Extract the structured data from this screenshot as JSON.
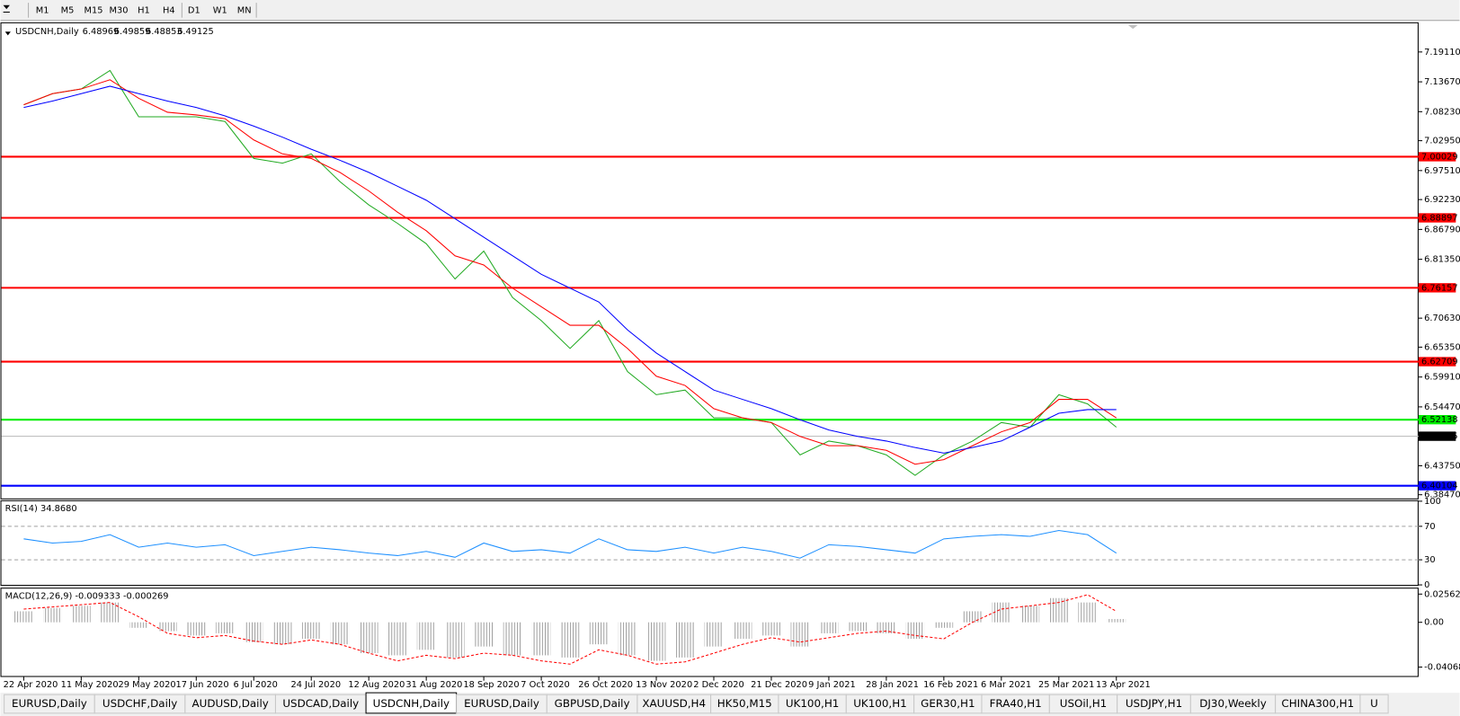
{
  "toolbar": {
    "buttons": [
      "M1",
      "M5",
      "M15",
      "M30",
      "H1",
      "H4",
      "D1",
      "W1",
      "MN"
    ]
  },
  "tabs": {
    "active": 4,
    "items": [
      "EURUSD,Daily",
      "USDCHF,Daily",
      "AUDUSD,Daily",
      "USDCAD,Daily",
      "USDCNH,Daily",
      "EURUSD,Daily",
      "GBPUSD,Daily",
      "XAUUSD,H4",
      "HK50,M15",
      "UK100,H1",
      "UK100,H1",
      "GER30,H1",
      "FRA40,H1",
      "USOil,H1",
      "USDJPY,H1",
      "DJ30,Weekly",
      "CHINA300,H1",
      "U"
    ]
  },
  "chart_data": [
    {
      "type": "line",
      "title": "USDCNH,Daily",
      "ohlc": [
        6.48969,
        6.49859,
        6.48853,
        6.49125
      ],
      "current_color": "#c0c0c0",
      "categories": [
        "22 Apr 2020",
        null,
        "11 May 2020",
        null,
        "29 May 2020",
        null,
        "17 Jun 2020",
        null,
        "6 Jul 2020",
        null,
        "24 Jul 2020",
        null,
        "12 Aug 2020",
        null,
        "31 Aug 2020",
        null,
        "18 Sep 2020",
        null,
        "7 Oct 2020",
        null,
        "26 Oct 2020",
        null,
        "13 Nov 2020",
        null,
        "2 Dec 2020",
        null,
        "21 Dec 2020",
        null,
        "9 Jan 2021",
        null,
        "28 Jan 2021",
        null,
        "16 Feb 2021",
        null,
        "6 Mar 2021",
        null,
        "25 Mar 2021",
        null,
        "13 Apr 2021"
      ],
      "series": [
        {
          "color": "#22aa22",
          "values": [
            7.0949,
            7.1152,
            7.1236,
            7.1574,
            7.073,
            7.073,
            7.073,
            7.0646,
            6.9971,
            6.9886,
            7.0055,
            6.9549,
            6.9127,
            6.879,
            6.8418,
            6.7777,
            6.8284,
            6.744,
            6.7018,
            6.6512,
            6.7018,
            6.609,
            6.5668,
            6.5753,
            6.5247,
            6.5247,
            6.5162,
            6.4572,
            6.4825,
            6.474,
            6.4572,
            6.42,
            6.4572,
            6.4825,
            6.5162,
            6.5078,
            6.5668,
            6.55,
            6.5078
          ]
        },
        {
          "color": "#ff0000",
          "values": [
            7.0949,
            7.1152,
            7.1236,
            7.1405,
            7.1067,
            7.0814,
            7.0764,
            7.0696,
            7.0308,
            7.0055,
            6.9971,
            6.9718,
            6.938,
            6.8992,
            6.8655,
            6.8199,
            6.803,
            6.7609,
            6.7271,
            6.6934,
            6.6934,
            6.6512,
            6.6006,
            6.5837,
            6.5415,
            6.5247,
            6.5162,
            6.4909,
            6.474,
            6.474,
            6.4656,
            6.4403,
            6.4487,
            6.474,
            6.4993,
            6.5162,
            6.5584,
            6.5584,
            6.5247
          ]
        },
        {
          "color": "#0000ff",
          "values": [
            7.0899,
            7.1017,
            7.1152,
            7.1287,
            7.1152,
            7.1017,
            7.0899,
            7.0747,
            7.0561,
            7.0359,
            7.0139,
            6.9937,
            6.9718,
            6.9465,
            6.9211,
            6.8874,
            6.8537,
            6.8199,
            6.7862,
            6.7609,
            6.7356,
            6.6849,
            6.6428,
            6.609,
            6.5753,
            6.5584,
            6.5415,
            6.5213,
            6.5027,
            6.4909,
            6.4825,
            6.4707,
            6.4605,
            6.4707,
            6.4825,
            6.5078,
            6.5331,
            6.5398,
            6.5398
          ]
        }
      ],
      "levels": [
        {
          "value": 7.00029,
          "color": "#ff0000"
        },
        {
          "value": 6.88897,
          "color": "#ff0000"
        },
        {
          "value": 6.76157,
          "color": "#ff0000"
        },
        {
          "value": 6.62709,
          "color": "#ff0000"
        },
        {
          "value": 6.52138,
          "color": "#00ee00"
        },
        {
          "value": 6.40104,
          "color": "#0000ff"
        }
      ],
      "ylim": [
        6.378,
        7.2434
      ],
      "yticks": [
        {
          "value": 7.1911,
          "label": "7.19110"
        },
        {
          "value": 7.1367,
          "label": "7.13670"
        },
        {
          "value": 7.0823,
          "label": "7.08230"
        },
        {
          "value": 7.0295,
          "label": "7.02950"
        },
        {
          "value": 6.9751,
          "label": "6.97510"
        },
        {
          "value": 6.9223,
          "label": "6.92230"
        },
        {
          "value": 6.8679,
          "label": "6.86790"
        },
        {
          "value": 6.8135,
          "label": "6.81350"
        },
        {
          "value": 6.7063,
          "label": "6.70630"
        },
        {
          "value": 6.6535,
          "label": "6.65350"
        },
        {
          "value": 6.5991,
          "label": "6.59910"
        },
        {
          "value": 6.5447,
          "label": "6.54470"
        },
        {
          "value": 6.4375,
          "label": "6.43750"
        },
        {
          "value": 6.3847,
          "label": "6.38470"
        }
      ]
    },
    {
      "type": "line",
      "title": "RSI(14) 34.8680",
      "levels": [
        70,
        30
      ],
      "series": [
        {
          "color": "#1e90ff",
          "values": [
            55,
            50,
            52,
            60,
            45,
            50,
            45,
            48,
            35,
            40,
            45,
            42,
            38,
            35,
            40,
            33,
            50,
            40,
            42,
            38,
            55,
            42,
            40,
            45,
            38,
            45,
            40,
            32,
            48,
            46,
            42,
            38,
            55,
            58,
            60,
            58,
            65,
            60,
            38
          ]
        }
      ],
      "ylim": [
        0,
        100
      ],
      "yticks": [
        0,
        30,
        70,
        100
      ]
    },
    {
      "type": "macd",
      "title": "MACD(12,26,9) -0.009333 -0.000269",
      "histogram": {
        "color": "#a0a0a0",
        "values": [
          0.01,
          0.013,
          0.015,
          0.018,
          -0.005,
          -0.008,
          -0.012,
          -0.01,
          -0.018,
          -0.02,
          -0.015,
          -0.02,
          -0.028,
          -0.03,
          -0.025,
          -0.032,
          -0.022,
          -0.03,
          -0.03,
          -0.032,
          -0.02,
          -0.03,
          -0.035,
          -0.032,
          -0.022,
          -0.015,
          -0.012,
          -0.022,
          -0.01,
          -0.008,
          -0.01,
          -0.015,
          -0.005,
          0.01,
          0.018,
          0.015,
          0.022,
          0.018,
          0.003
        ]
      },
      "signal": {
        "color": "#ff0000",
        "values": [
          0.012,
          0.014,
          0.016,
          0.018,
          0.005,
          -0.01,
          -0.014,
          -0.012,
          -0.017,
          -0.02,
          -0.016,
          -0.02,
          -0.028,
          -0.035,
          -0.03,
          -0.033,
          -0.028,
          -0.03,
          -0.035,
          -0.038,
          -0.025,
          -0.03,
          -0.038,
          -0.036,
          -0.028,
          -0.02,
          -0.014,
          -0.018,
          -0.014,
          -0.01,
          -0.008,
          -0.012,
          -0.015,
          0.0,
          0.012,
          0.015,
          0.018,
          0.025,
          0.01
        ]
      },
      "ylim": [
        -0.0488,
        0.0306
      ],
      "yticks": [
        0.025623,
        {
          "value": 0,
          "label": "0.00"
        },
        -0.040687
      ]
    }
  ]
}
